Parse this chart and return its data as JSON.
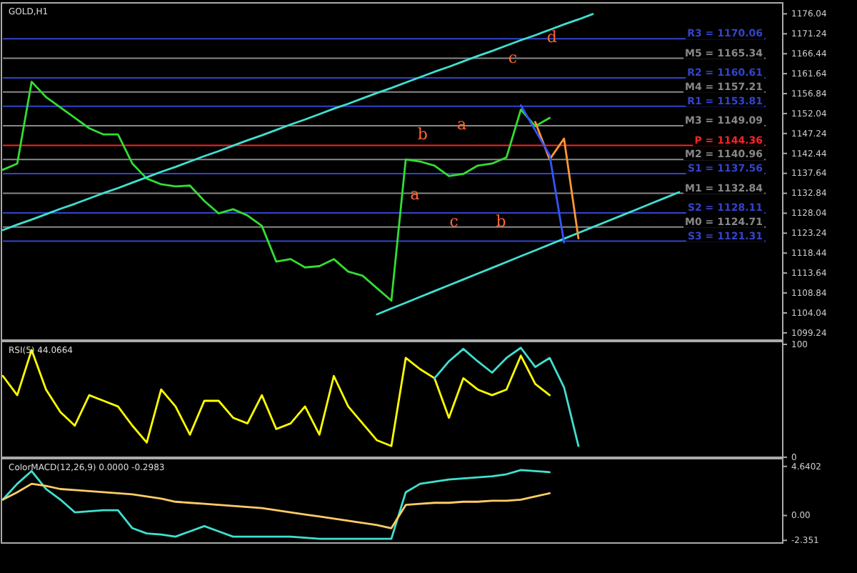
{
  "chart_data": [
    {
      "type": "line",
      "title": "GOLD,H1",
      "categories": [
        null,
        null,
        null,
        null,
        null,
        null,
        null,
        null,
        null,
        null,
        null,
        null,
        null,
        null,
        null,
        null,
        null,
        null,
        null,
        null,
        null,
        null,
        null,
        null,
        null,
        null,
        null,
        null,
        null,
        null,
        null,
        null,
        null,
        null,
        null,
        null,
        null,
        null,
        null,
        null,
        null,
        null,
        null,
        null,
        null,
        null,
        null,
        null,
        null,
        null,
        null,
        null,
        null,
        null,
        null
      ],
      "ylim": [
        1097.5,
        1178
      ],
      "yticks": [
        1099.24,
        1104.04,
        1108.84,
        1113.64,
        1118.44,
        1123.24,
        1128.04,
        1132.84,
        1137.64,
        1142.44,
        1147.24,
        1152.04,
        1156.84,
        1161.64,
        1166.44,
        1171.24,
        1176.04
      ],
      "tick_labels": "y",
      "series": [
        {
          "color": "#33dd33",
          "values": [
            1138.5,
            1140,
            1159.7,
            1156,
            1153.5,
            1151,
            1148.5,
            1147,
            1147,
            1140,
            1136.4,
            1135,
            1134.5,
            1134.7,
            1131,
            1128,
            1129,
            1127.5,
            1125,
            1116.4,
            1117,
            1115,
            1115.3,
            1117,
            1114,
            1113,
            1110,
            1107,
            1141,
            1140.5,
            1139.5,
            1137,
            1137.5,
            1139.5,
            1140,
            1141.5,
            1153,
            1149,
            1151,
            null,
            null,
            null,
            null,
            null,
            null,
            null,
            null,
            null,
            null,
            null,
            null,
            null,
            null,
            null,
            null
          ]
        },
        {
          "color": "#40e0d0",
          "values": [
            1124,
            1125.3,
            1126.5,
            1127.8,
            1129.1,
            1130.3,
            1131.6,
            1132.9,
            1134.1,
            1135.4,
            1136.7,
            1138,
            1139.2,
            1140.5,
            1141.8,
            1143,
            1144.3,
            1145.6,
            1146.8,
            1148.1,
            1149.4,
            1150.6,
            1151.9,
            1153.2,
            1154.4,
            1155.7,
            1157,
            1158.2,
            1159.5,
            1160.8,
            1162.1,
            1163.3,
            1164.6,
            1165.9,
            1167.1,
            1168.4,
            1169.7,
            1170.9,
            1172.2,
            1173.5,
            1174.7,
            1176,
            null,
            null,
            null,
            null,
            null,
            null,
            null,
            null,
            null,
            null,
            null,
            null,
            null
          ]
        },
        {
          "color": "#40e0d0",
          "values": [
            null,
            null,
            null,
            null,
            null,
            null,
            null,
            null,
            null,
            null,
            null,
            null,
            null,
            null,
            null,
            null,
            null,
            null,
            null,
            null,
            null,
            null,
            null,
            null,
            null,
            null,
            1103.7,
            1105.1,
            1106.5,
            1107.9,
            1109.3,
            1110.7,
            1112.1,
            1113.5,
            1114.9,
            1116.3,
            1117.7,
            1119.1,
            1120.5,
            1121.9,
            1123.3,
            1124.7,
            1126.1,
            1127.5,
            1128.9,
            1130.3,
            1131.7,
            1133.1,
            null,
            null,
            null,
            null,
            null,
            null,
            null
          ]
        },
        {
          "color": "#ff9933",
          "values": [
            null,
            null,
            null,
            null,
            null,
            null,
            null,
            null,
            null,
            null,
            null,
            null,
            null,
            null,
            null,
            null,
            null,
            null,
            null,
            null,
            null,
            null,
            null,
            null,
            null,
            null,
            null,
            null,
            null,
            null,
            null,
            null,
            null,
            null,
            null,
            null,
            null,
            1150,
            1141,
            1146,
            1122,
            null,
            null,
            null,
            null,
            null,
            null,
            null,
            null,
            null,
            null,
            null,
            null,
            null,
            null
          ]
        },
        {
          "color": "#3355ff",
          "values": [
            null,
            null,
            null,
            null,
            null,
            null,
            null,
            null,
            null,
            null,
            null,
            null,
            null,
            null,
            null,
            null,
            null,
            null,
            null,
            null,
            null,
            null,
            null,
            null,
            null,
            null,
            null,
            null,
            null,
            null,
            null,
            null,
            null,
            null,
            null,
            null,
            1154,
            1148,
            1142,
            1121,
            null,
            null,
            null,
            null,
            null,
            null,
            null,
            null,
            null,
            null,
            null,
            null,
            null,
            null,
            null
          ]
        }
      ],
      "ref_lines": [
        {
          "axis": "y",
          "value": 1170.06,
          "label": "R3 = 1170.06",
          "color": "#3344cc"
        },
        {
          "axis": "y",
          "value": 1165.34,
          "label": "M5 = 1165.34",
          "color": "#888888"
        },
        {
          "axis": "y",
          "value": 1160.61,
          "label": "R2 = 1160.61",
          "color": "#3344cc"
        },
        {
          "axis": "y",
          "value": 1157.21,
          "label": "M4 = 1157.21",
          "color": "#888888"
        },
        {
          "axis": "y",
          "value": 1153.81,
          "label": "R1 = 1153.81",
          "color": "#3344cc"
        },
        {
          "axis": "y",
          "value": 1149.09,
          "label": "M3 = 1149.09",
          "color": "#888888"
        },
        {
          "axis": "y",
          "value": 1144.36,
          "label": "P = 1144.36",
          "color": "#ff2222"
        },
        {
          "axis": "y",
          "value": 1140.96,
          "label": "M2 = 1140.96",
          "color": "#888888"
        },
        {
          "axis": "y",
          "value": 1137.56,
          "label": "S1 = 1137.56",
          "color": "#3344cc"
        },
        {
          "axis": "y",
          "value": 1132.84,
          "label": "M1 = 1132.84",
          "color": "#888888"
        },
        {
          "axis": "y",
          "value": 1128.11,
          "label": "S2 = 1128.11",
          "color": "#3344cc"
        },
        {
          "axis": "y",
          "value": 1124.71,
          "label": "M0 = 1124.71",
          "color": "#888888"
        },
        {
          "axis": "y",
          "value": 1121.31,
          "label": "S3 = 1121.31",
          "color": "#3344cc"
        }
      ],
      "annotations": [
        "a",
        "b",
        "c",
        "a",
        "b",
        "c",
        "d"
      ]
    },
    {
      "type": "line",
      "title": "RSI(5) 44.0664",
      "categories": [
        null,
        null,
        null,
        null,
        null,
        null,
        null,
        null,
        null,
        null,
        null,
        null,
        null,
        null,
        null,
        null,
        null,
        null,
        null,
        null,
        null,
        null,
        null,
        null,
        null,
        null,
        null,
        null,
        null,
        null,
        null,
        null,
        null,
        null,
        null,
        null,
        null,
        null,
        null,
        null,
        null,
        null,
        null,
        null,
        null,
        null,
        null,
        null,
        null,
        null,
        null,
        null,
        null,
        null,
        null
      ],
      "ylim": [
        0,
        100
      ],
      "yticks": [
        0,
        100
      ],
      "tick_labels": "y",
      "series": [
        {
          "color": "#ffff00",
          "values": [
            72,
            55,
            95,
            60,
            40,
            28,
            55,
            50,
            45,
            28,
            13,
            60,
            45,
            20,
            50,
            50,
            35,
            30,
            55,
            25,
            30,
            45,
            20,
            72,
            45,
            30,
            15,
            10,
            88,
            78,
            70,
            35,
            70,
            60,
            55,
            60,
            90,
            65,
            55,
            null,
            null,
            null,
            null,
            null,
            null,
            null,
            null,
            null,
            null,
            null,
            null,
            null,
            null,
            null,
            null
          ]
        },
        {
          "color": "#40e0d0",
          "values": [
            null,
            null,
            null,
            null,
            null,
            null,
            null,
            null,
            null,
            null,
            null,
            null,
            null,
            null,
            null,
            null,
            null,
            null,
            null,
            null,
            null,
            null,
            null,
            null,
            null,
            null,
            null,
            null,
            null,
            null,
            70,
            85,
            96,
            85,
            75,
            88,
            97,
            80,
            88,
            62,
            10,
            null,
            null,
            null,
            null,
            null,
            null,
            null,
            null,
            null,
            null,
            null,
            null,
            null,
            null
          ]
        }
      ]
    },
    {
      "type": "line",
      "title": "ColorMACD(12,26,9) 0.0000 -0.2983",
      "categories": [
        null,
        null,
        null,
        null,
        null,
        null,
        null,
        null,
        null,
        null,
        null,
        null,
        null,
        null,
        null,
        null,
        null,
        null,
        null,
        null,
        null,
        null,
        null,
        null,
        null,
        null,
        null,
        null,
        null,
        null,
        null,
        null,
        null,
        null,
        null,
        null,
        null,
        null,
        null,
        null,
        null,
        null,
        null,
        null,
        null,
        null,
        null,
        null,
        null,
        null,
        null,
        null,
        null,
        null,
        null
      ],
      "ylim": [
        -2.6,
        5.1
      ],
      "yticks": [
        {
          "value": 4.6402,
          "label": "4.6402"
        },
        {
          "value": 0,
          "label": "0.00"
        },
        -2.351
      ],
      "tick_labels": "y",
      "series": [
        {
          "color": "#40e0d0",
          "values": [
            1.5,
            3,
            4.2,
            2.5,
            1.5,
            0.3,
            0.4,
            0.5,
            0.5,
            -1.2,
            -1.7,
            -1.8,
            -2,
            -1.5,
            -1,
            -1.5,
            -2,
            -2,
            -2,
            -2,
            -2,
            -2.1,
            -2.2,
            -2.2,
            -2.2,
            -2.2,
            -2.2,
            -2.2,
            2.2,
            3,
            3.2,
            3.4,
            3.5,
            3.6,
            3.7,
            3.9,
            4.3,
            4.2,
            4.1,
            null,
            null,
            null,
            null,
            null,
            null,
            null,
            null,
            null,
            null,
            null,
            null,
            null,
            null,
            null,
            null
          ]
        },
        {
          "color": "#ffcc66",
          "values": [
            1.5,
            2.2,
            3,
            2.8,
            2.5,
            2.4,
            2.3,
            2.2,
            2.1,
            2,
            1.8,
            1.6,
            1.3,
            1.2,
            1.1,
            1,
            0.9,
            0.8,
            0.7,
            0.5,
            0.3,
            0.1,
            -0.1,
            -0.3,
            -0.5,
            -0.7,
            -0.9,
            -1.2,
            1,
            1.1,
            1.2,
            1.2,
            1.3,
            1.3,
            1.4,
            1.4,
            1.5,
            1.8,
            2.1,
            null,
            null,
            null,
            null,
            null,
            null,
            null,
            null,
            null,
            null,
            null,
            null,
            null,
            null,
            null,
            null
          ]
        }
      ]
    }
  ]
}
